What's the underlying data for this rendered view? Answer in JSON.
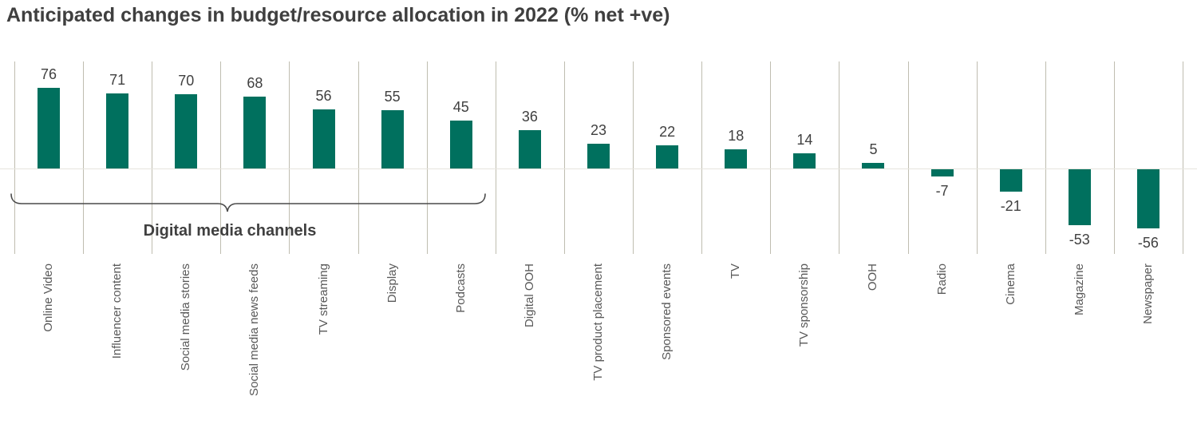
{
  "title": "Anticipated changes in budget/resource allocation in 2022 (% net +ve)",
  "chart_data": {
    "type": "bar",
    "title": "Anticipated changes in budget/resource allocation in 2022 (% net +ve)",
    "categories": [
      "Online Video",
      "Influencer content",
      "Social media stories",
      "Social media news feeds",
      "TV streaming",
      "Display",
      "Podcasts",
      "Digital OOH",
      "TV product placement",
      "Sponsored events",
      "TV",
      "TV sponsorship",
      "OOH",
      "Radio",
      "Cinema",
      "Magazine",
      "Newspaper"
    ],
    "values": [
      76,
      71,
      70,
      68,
      56,
      55,
      45,
      36,
      23,
      22,
      18,
      14,
      5,
      -7,
      -21,
      -53,
      -56
    ],
    "xlabel": "",
    "ylabel": "",
    "ylim": [
      -80,
      101
    ],
    "grid": "vertical-category-separators-only",
    "legend": "none",
    "data_labels": true,
    "category_label_rotation_deg": 90,
    "annotation": {
      "label": "Digital media channels",
      "covers_categories": [
        "Online Video",
        "Influencer content",
        "Social media stories",
        "Social media news feeds",
        "TV streaming",
        "Display",
        "Podcasts"
      ]
    }
  },
  "colors": {
    "bar": "#00705e",
    "title_text": "#3f3f3f",
    "value_label_text": "#404040",
    "category_label_text": "#595959",
    "gridline": "#bfbdb0",
    "zero_line": "#e6e4de",
    "bracket": "#4a4a4a",
    "background": "#ffffff"
  }
}
